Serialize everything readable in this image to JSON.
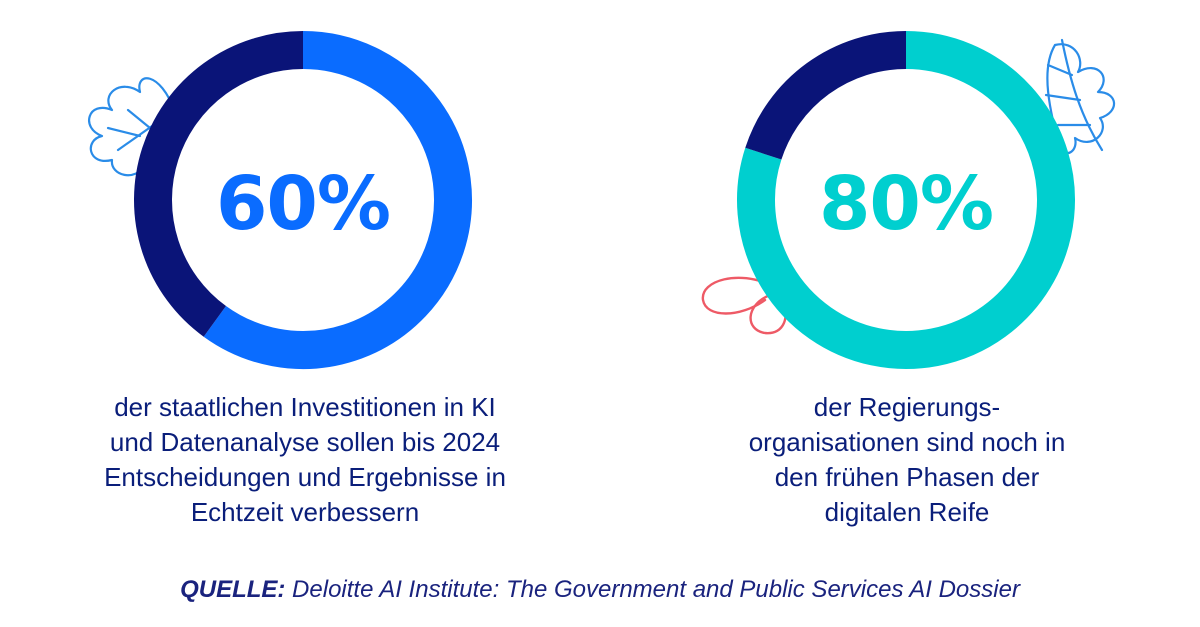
{
  "chart_data": [
    {
      "type": "pie",
      "id": "left",
      "value_label": "60%",
      "values": [
        60,
        40
      ],
      "colors": [
        "#0a6cff",
        "#0a1478"
      ],
      "caption": "der staatlichen Investitionen in KI und Datenanalyse sollen bis 2024 Entscheidungen und Ergebnisse in Echtzeit verbessern",
      "caption_lines": [
        "der staatlichen Investitionen in KI",
        "und Datenanalyse sollen bis 2024",
        "Entscheidungen und Ergebnisse in",
        "Echtzeit verbessern"
      ]
    },
    {
      "type": "pie",
      "id": "right",
      "value_label": "80%",
      "values": [
        80,
        20
      ],
      "colors": [
        "#00cfcf",
        "#0a1478"
      ],
      "caption": "der Regierungsorganisationen sind noch in den frühen Phasen der digitalen Reife",
      "caption_lines": [
        "der Regierungs-",
        "organisationen sind noch in",
        "den frühen Phasen der",
        "digitalen Reife"
      ]
    }
  ],
  "source": {
    "label": "QUELLE:",
    "text": " Deloitte AI Institute: The Government and Public Services AI Dossier"
  },
  "decorations": {
    "leaf_left_color": "#2a8ce8",
    "leaf_right_color": "#2a8ce8",
    "petal_color": "#ee5a66"
  }
}
